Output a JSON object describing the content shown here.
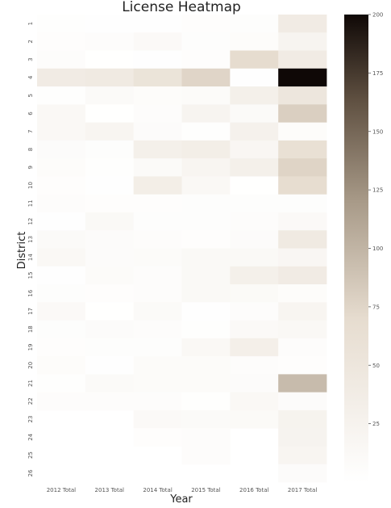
{
  "chart_data": {
    "type": "heatmap",
    "title": "License Heatmap",
    "xlabel": "Year",
    "ylabel": "District",
    "x_categories": [
      "2012 Total",
      "2013 Total",
      "2014 Total",
      "2015 Total",
      "2016 Total",
      "2017 Total"
    ],
    "y_categories": [
      "1",
      "2",
      "3",
      "4",
      "5",
      "6",
      "7",
      "8",
      "9",
      "10",
      "11",
      "12",
      "13",
      "14",
      "15",
      "16",
      "17",
      "18",
      "19",
      "20",
      "21",
      "22",
      "23",
      "24",
      "25",
      "26"
    ],
    "values": [
      [
        3,
        2,
        2,
        4,
        5,
        40
      ],
      [
        4,
        6,
        12,
        5,
        7,
        22
      ],
      [
        6,
        1,
        2,
        4,
        70,
        40
      ],
      [
        40,
        42,
        55,
        75,
        2,
        200
      ],
      [
        3,
        10,
        7,
        9,
        30,
        50
      ],
      [
        14,
        1,
        6,
        22,
        10,
        80
      ],
      [
        15,
        20,
        8,
        3,
        28,
        7
      ],
      [
        8,
        5,
        30,
        35,
        18,
        62
      ],
      [
        7,
        3,
        10,
        20,
        30,
        76
      ],
      [
        4,
        2,
        35,
        15,
        1,
        68
      ],
      [
        6,
        4,
        4,
        5,
        5,
        5
      ],
      [
        2,
        13,
        5,
        5,
        6,
        12
      ],
      [
        10,
        8,
        6,
        4,
        8,
        43
      ],
      [
        14,
        8,
        9,
        13,
        13,
        18
      ],
      [
        2,
        9,
        6,
        13,
        30,
        40
      ],
      [
        5,
        4,
        6,
        13,
        11,
        7
      ],
      [
        12,
        1,
        10,
        2,
        6,
        20
      ],
      [
        5,
        8,
        6,
        3,
        12,
        14
      ],
      [
        4,
        5,
        5,
        14,
        32,
        6
      ],
      [
        7,
        2,
        9,
        9,
        6,
        4
      ],
      [
        3,
        10,
        9,
        9,
        8,
        95
      ],
      [
        6,
        6,
        6,
        3,
        15,
        8
      ],
      [
        null,
        null,
        12,
        10,
        11,
        25
      ],
      [
        null,
        null,
        4,
        6,
        null,
        24
      ],
      [
        null,
        null,
        null,
        6,
        null,
        20
      ],
      [
        null,
        null,
        null,
        null,
        null,
        8
      ]
    ],
    "colorbar": {
      "min": 0,
      "max": 200,
      "ticks": [
        25,
        50,
        75,
        100,
        125,
        150,
        175,
        200
      ]
    },
    "colors": {
      "low": "#ffffff",
      "mid": "#a89a88",
      "high": "#0f0806"
    }
  }
}
